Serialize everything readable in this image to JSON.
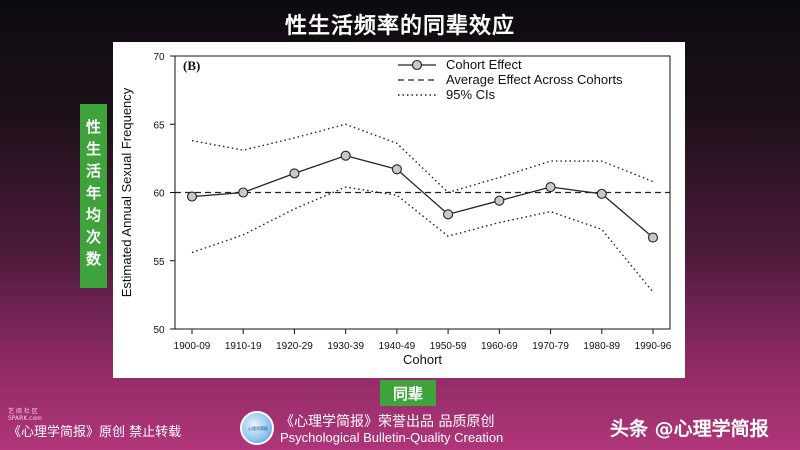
{
  "page": {
    "title": "性生活频率的同辈效应",
    "side_label": "性生活年均次数",
    "x_badge": "同辈"
  },
  "footer": {
    "left_small": "艺 阅 社 区 SPARK.com",
    "left": "《心理学简报》原创 禁止转载",
    "center_line1": "《心理学简报》荣誉出品 品质原创",
    "center_line2": "Psychological Bulletin-Quality Creation",
    "right": "头条 @心理学简报",
    "logo_text": "心理学简报"
  },
  "colors": {
    "badge_green": "#3fa33b",
    "marker_fill": "#c8c8c8",
    "line": "#222222"
  },
  "chart_data": {
    "type": "line",
    "panel_tag": "(B)",
    "xlabel": "Cohort",
    "ylabel": "Estimated Annual Sexual Frequency",
    "categories": [
      "1900-09",
      "1910-19",
      "1920-29",
      "1930-39",
      "1940-49",
      "1950-59",
      "1960-69",
      "1970-79",
      "1980-89",
      "1990-96"
    ],
    "ylim": [
      50,
      70
    ],
    "yticks": [
      50,
      55,
      60,
      65,
      70
    ],
    "series": [
      {
        "name": "Cohort Effect",
        "style": "solid-with-circles",
        "values": [
          59.7,
          60.0,
          61.4,
          62.7,
          61.7,
          58.4,
          59.4,
          60.4,
          59.9,
          56.7
        ]
      },
      {
        "name": "Average Effect Across Cohorts",
        "style": "dashed",
        "values": [
          60.0,
          60.0,
          60.0,
          60.0,
          60.0,
          60.0,
          60.0,
          60.0,
          60.0,
          60.0
        ]
      },
      {
        "name": "95% CIs",
        "style": "dotted",
        "upper": [
          63.8,
          63.1,
          64.0,
          65.0,
          63.6,
          60.0,
          61.1,
          62.3,
          62.3,
          60.8
        ],
        "lower": [
          55.6,
          56.9,
          58.8,
          60.4,
          59.8,
          56.8,
          57.8,
          58.6,
          57.3,
          52.7
        ]
      }
    ],
    "legend_position": "top-right",
    "grid": false
  }
}
